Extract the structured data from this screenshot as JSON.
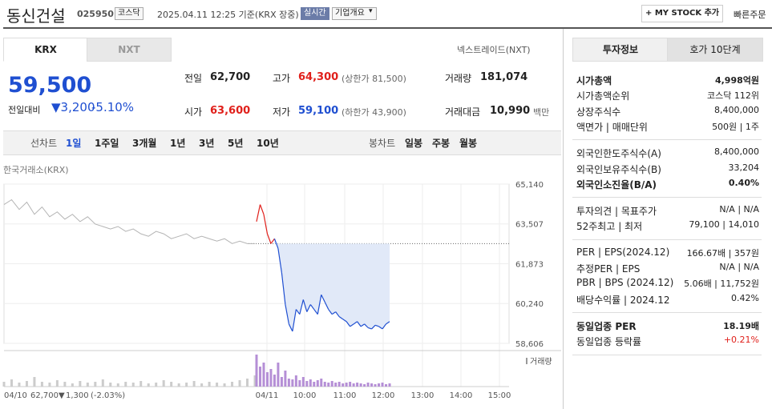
{
  "header": {
    "name": "동신건설",
    "code": "025950",
    "market": "코스닥",
    "timestamp": "2025.04.11 12:25 기준(KRX 장중)",
    "realtime": "실시간",
    "overview": "기업개요",
    "mystock": "MY STOCK 추가",
    "quick_order": "빠른주문"
  },
  "left": {
    "tabs": [
      "KRX",
      "NXT"
    ],
    "nxt_link": "넥스트레이드(NXT)",
    "price": "59,500",
    "change_label": "전일대비",
    "change": "3,200",
    "change_pct": "-5.10%",
    "stats": [
      [
        "전일",
        "62,700",
        ""
      ],
      [
        "고가",
        "64,300",
        "(상한가 81,500)"
      ],
      [
        "거래량",
        "181,074",
        ""
      ],
      [
        "시가",
        "63,600",
        ""
      ],
      [
        "저가",
        "59,100",
        "(하한가 43,900)"
      ],
      [
        "거래대금",
        "10,990",
        "백만"
      ]
    ],
    "periods": {
      "line_chart": "선차트",
      "line_periods": [
        "1일",
        "1주일",
        "3개월",
        "1년",
        "3년",
        "5년",
        "10년"
      ],
      "candle_chart": "봉차트",
      "candle_periods": [
        "일봉",
        "주봉",
        "월봉"
      ]
    }
  },
  "chart": {
    "source": "한국거래소(KRX)",
    "prev_day": [
      64300,
      64500,
      64100,
      64400,
      63900,
      64200,
      63800,
      64000,
      63700,
      63900,
      63600,
      63800,
      63500,
      63400,
      63300,
      63400,
      63200,
      63300,
      63100,
      63000,
      63200,
      63100,
      62900,
      63000,
      63100,
      62900,
      63000,
      62900,
      62800,
      62900,
      62700,
      62800,
      62700,
      62700
    ],
    "today": [
      63600,
      64300,
      63900,
      63100,
      62700,
      62900,
      62500,
      61500,
      60200,
      59400,
      59100,
      60000,
      59800,
      60400,
      59900,
      60200,
      60000,
      59800,
      60600,
      60300,
      60000,
      59800,
      59900,
      59700,
      59600,
      59500,
      59300,
      59400,
      59500,
      59300,
      59400,
      59250,
      59200,
      59350,
      59300,
      59200,
      59400,
      59500
    ],
    "prev_volume": [
      6,
      9,
      5,
      7,
      12,
      6,
      5,
      8,
      6,
      4,
      7,
      5,
      6,
      9,
      5,
      4,
      6,
      5,
      7,
      4,
      5,
      8,
      6,
      4,
      5,
      7,
      4,
      6,
      5,
      4,
      6,
      8,
      10,
      14
    ],
    "today_volume": [
      40,
      25,
      30,
      18,
      22,
      15,
      30,
      12,
      20,
      10,
      9,
      14,
      8,
      12,
      7,
      9,
      6,
      8,
      10,
      6,
      5,
      7,
      5,
      6,
      4,
      5,
      6,
      4,
      5,
      4,
      3,
      5,
      4,
      3,
      4,
      5,
      3,
      4
    ],
    "baseline": 62700,
    "ylim": [
      58606,
      65140
    ],
    "yticks": [
      {
        "value": 65140,
        "label": "65,140"
      },
      {
        "value": 63507,
        "label": "63,507"
      },
      {
        "value": 61873,
        "label": "61,873"
      },
      {
        "value": 60240,
        "label": "60,240"
      },
      {
        "value": 58606,
        "label": "58,606"
      }
    ],
    "xlabels": [
      "04/11",
      "10:00",
      "11:00",
      "12:00",
      "13:00",
      "14:00",
      "15:00"
    ],
    "volume_label": "거래량",
    "colors": {
      "prev": "#b4b4b4",
      "up": "#e0201b",
      "down": "#1f4fd1",
      "fill": "#e1e9f8"
    },
    "footer": {
      "date": "04/10",
      "close": "62,700",
      "change": "1,300",
      "pct": "(-2.03%)"
    }
  },
  "right": {
    "tabs": [
      "투자정보",
      "호가 10단계"
    ],
    "sections": [
      [
        {
          "label": "시가총액",
          "value": "4,998억원",
          "strong": true
        },
        {
          "label": "시가총액순위",
          "value": "코스닥 112위"
        },
        {
          "label": "상장주식수",
          "value": "8,400,000"
        },
        {
          "label": "액면가 | 매매단위",
          "value": "500원 | 1주"
        }
      ],
      [
        {
          "label": "외국인한도주식수(A)",
          "value": "8,400,000"
        },
        {
          "label": "외국인보유주식수(B)",
          "value": "33,204"
        },
        {
          "label": "외국인소진율(B/A)",
          "value": "0.40%",
          "strong": true
        }
      ],
      [
        {
          "label": "투자의견 | 목표주가",
          "value": "N/A | N/A"
        },
        {
          "label": "52주최고 | 최저",
          "value": "79,100 | 14,010"
        }
      ],
      [
        {
          "label": "PER | EPS(2024.12)",
          "value": "166.67배 | 357원"
        },
        {
          "label": "추정PER | EPS",
          "value": "N/A | N/A"
        },
        {
          "label": "PBR | BPS (2024.12)",
          "value": "5.06배 | 11,752원"
        },
        {
          "label": "배당수익률 | 2024.12",
          "value": "0.42%"
        }
      ],
      [
        {
          "label": "동일업종 PER",
          "value": "18.19배",
          "strong": true
        },
        {
          "label": "동일업종 등락률",
          "value": "+0.21%",
          "color": "#e0201b"
        }
      ]
    ]
  }
}
